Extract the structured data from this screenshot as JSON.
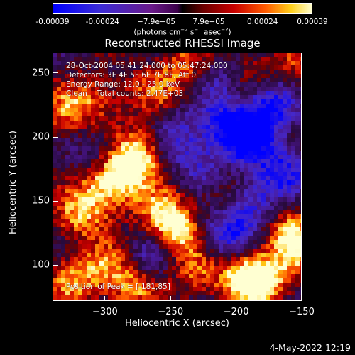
{
  "colorbar": {
    "ticks": [
      "-0.00039",
      "-0.00024",
      "−7.9e−05",
      "7.9e−05",
      "0.00024",
      "0.00039"
    ],
    "tick_values": [
      -0.00039,
      -0.00024,
      -7.9e-05,
      7.9e-05,
      0.00024,
      0.00039
    ],
    "range": [
      -0.00039,
      0.00039
    ],
    "units_main": "(photons cm",
    "units_sup1": "−2",
    "units_s": " s",
    "units_sup2": "−1",
    "units_asec": " asec",
    "units_sup3": "−2",
    "units_close": ")"
  },
  "title": "Reconstructed RHESSI Image",
  "annotations": {
    "line1": "28-Oct-2004 05:41:24.000 to 05:47:24.000",
    "line2": "Detectors: 3F 4F 5F 6F 7F 8F, Att 0",
    "line3": "Energy Range: 12.0 - 25.0 keV",
    "line4": "Clean    Total counts: 2.47E+03",
    "peak": "Position of Peak = [-181,85]"
  },
  "chart_data": {
    "type": "heatmap",
    "title": "Reconstructed RHESSI Image",
    "xlabel": "Heliocentric X (arcsec)",
    "ylabel": "Heliocentric Y (arcsec)",
    "xlim": [
      -340,
      -150
    ],
    "ylim": [
      72,
      266
    ],
    "x_ticks": [
      "−300",
      "−250",
      "−200",
      "−150"
    ],
    "x_tick_values": [
      -300,
      -250,
      -200,
      -150
    ],
    "y_ticks": [
      "100",
      "150",
      "200",
      "250"
    ],
    "y_tick_values": [
      100,
      150,
      200,
      250
    ],
    "peak_position": [
      -181,
      85
    ],
    "value_range": [
      -0.00039,
      0.00039
    ],
    "colors": {
      "negative": "#0000ff",
      "zero": "#000000",
      "positive": "#ffffd0"
    },
    "features": [
      {
        "kind": "positive",
        "x": -182,
        "y": 88,
        "strength": 1.0
      },
      {
        "kind": "positive",
        "x": -195,
        "y": 95,
        "strength": 0.8
      },
      {
        "kind": "positive",
        "x": -285,
        "y": 175,
        "strength": 0.95
      },
      {
        "kind": "positive",
        "x": -275,
        "y": 190,
        "strength": 0.85
      },
      {
        "kind": "positive",
        "x": -300,
        "y": 160,
        "strength": 0.8
      },
      {
        "kind": "positive",
        "x": -320,
        "y": 140,
        "strength": 0.7
      },
      {
        "kind": "positive",
        "x": -255,
        "y": 140,
        "strength": 0.85
      },
      {
        "kind": "positive",
        "x": -245,
        "y": 125,
        "strength": 0.75
      },
      {
        "kind": "positive",
        "x": -330,
        "y": 220,
        "strength": 0.6
      },
      {
        "kind": "positive",
        "x": -305,
        "y": 230,
        "strength": 0.55
      },
      {
        "kind": "positive",
        "x": -240,
        "y": 255,
        "strength": 0.6
      },
      {
        "kind": "positive",
        "x": -325,
        "y": 90,
        "strength": 0.65
      },
      {
        "kind": "positive",
        "x": -280,
        "y": 85,
        "strength": 0.7
      },
      {
        "kind": "positive",
        "x": -300,
        "y": 100,
        "strength": 0.55
      },
      {
        "kind": "positive",
        "x": -230,
        "y": 95,
        "strength": 0.6
      },
      {
        "kind": "positive",
        "x": -160,
        "y": 130,
        "strength": 0.7
      },
      {
        "kind": "positive",
        "x": -155,
        "y": 110,
        "strength": 0.6
      },
      {
        "kind": "positive",
        "x": -215,
        "y": 160,
        "strength": 0.5
      },
      {
        "kind": "positive",
        "x": -155,
        "y": 255,
        "strength": 0.5
      },
      {
        "kind": "positive",
        "x": -195,
        "y": 250,
        "strength": 0.45
      },
      {
        "kind": "positive",
        "x": -265,
        "y": 235,
        "strength": 0.45
      },
      {
        "kind": "negative",
        "x": -190,
        "y": 200,
        "strength": 1.0
      },
      {
        "kind": "negative",
        "x": -175,
        "y": 225,
        "strength": 0.9
      },
      {
        "kind": "negative",
        "x": -210,
        "y": 210,
        "strength": 0.8
      },
      {
        "kind": "negative",
        "x": -165,
        "y": 175,
        "strength": 0.8
      },
      {
        "kind": "negative",
        "x": -210,
        "y": 125,
        "strength": 0.85
      },
      {
        "kind": "negative",
        "x": -190,
        "y": 150,
        "strength": 0.75
      },
      {
        "kind": "negative",
        "x": -245,
        "y": 200,
        "strength": 0.6
      },
      {
        "kind": "negative",
        "x": -225,
        "y": 175,
        "strength": 0.6
      },
      {
        "kind": "negative",
        "x": -265,
        "y": 110,
        "strength": 0.55
      },
      {
        "kind": "negative",
        "x": -300,
        "y": 190,
        "strength": 0.45
      },
      {
        "kind": "negative",
        "x": -210,
        "y": 245,
        "strength": 0.55
      }
    ]
  },
  "footer": "4-May-2022 12:19"
}
